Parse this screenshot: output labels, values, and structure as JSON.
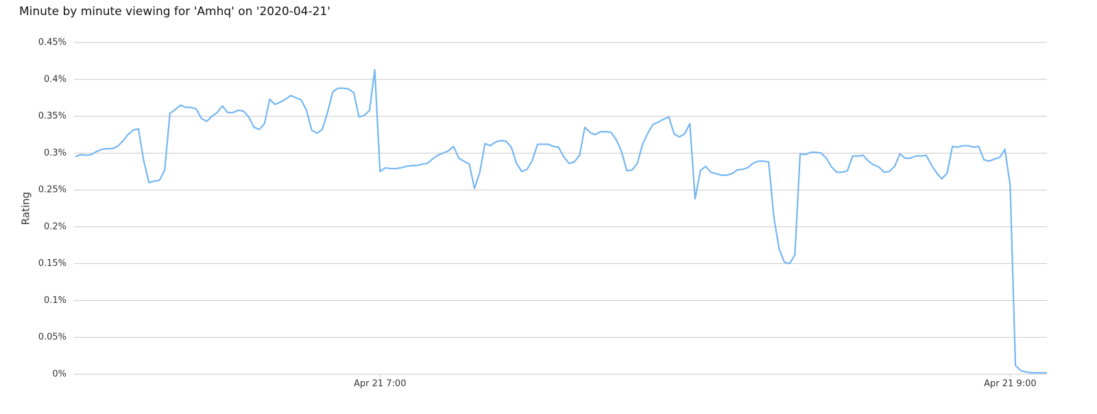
{
  "chart_data": {
    "type": "line",
    "title": "Minute by minute viewing for 'Amhq' on '2020-04-21'",
    "y_label": "Rating",
    "color": "#74b6f2",
    "grid": true,
    "x": [
      "6:02",
      "6:03",
      "6:04",
      "6:05",
      "6:06",
      "6:07",
      "6:08",
      "6:09",
      "6:10",
      "6:11",
      "6:12",
      "6:13",
      "6:14",
      "6:15",
      "6:16",
      "6:17",
      "6:18",
      "6:19",
      "6:20",
      "6:21",
      "6:22",
      "6:23",
      "6:24",
      "6:25",
      "6:26",
      "6:27",
      "6:28",
      "6:29",
      "6:30",
      "6:31",
      "6:32",
      "6:33",
      "6:34",
      "6:35",
      "6:36",
      "6:37",
      "6:38",
      "6:39",
      "6:40",
      "6:41",
      "6:42",
      "6:43",
      "6:44",
      "6:45",
      "6:46",
      "6:47",
      "6:48",
      "6:49",
      "6:50",
      "6:51",
      "6:52",
      "6:53",
      "6:54",
      "6:55",
      "6:56",
      "6:57",
      "6:58",
      "6:59",
      "7:00",
      "7:01",
      "7:02",
      "7:03",
      "7:04",
      "7:05",
      "7:06",
      "7:07",
      "7:08",
      "7:09",
      "7:10",
      "7:11",
      "7:12",
      "7:13",
      "7:14",
      "7:15",
      "7:16",
      "7:17",
      "7:18",
      "7:19",
      "7:20",
      "7:21",
      "7:22",
      "7:23",
      "7:24",
      "7:25",
      "7:26",
      "7:27",
      "7:28",
      "7:29",
      "7:30",
      "7:31",
      "7:32",
      "7:33",
      "7:34",
      "7:35",
      "7:36",
      "7:37",
      "7:38",
      "7:39",
      "7:40",
      "7:41",
      "7:42",
      "7:43",
      "7:44",
      "7:45",
      "7:46",
      "7:47",
      "7:48",
      "7:49",
      "7:50",
      "7:51",
      "7:52",
      "7:53",
      "7:54",
      "7:55",
      "7:56",
      "7:57",
      "7:58",
      "7:59",
      "8:00",
      "8:01",
      "8:02",
      "8:03",
      "8:04",
      "8:05",
      "8:06",
      "8:07",
      "8:08",
      "8:09",
      "8:10",
      "8:11",
      "8:12",
      "8:13",
      "8:14",
      "8:15",
      "8:16",
      "8:17",
      "8:18",
      "8:19",
      "8:20",
      "8:21",
      "8:22",
      "8:23",
      "8:24",
      "8:25",
      "8:26",
      "8:27",
      "8:28",
      "8:29",
      "8:30",
      "8:31",
      "8:32",
      "8:33",
      "8:34",
      "8:35",
      "8:36",
      "8:37",
      "8:38",
      "8:39",
      "8:40",
      "8:41",
      "8:42",
      "8:43",
      "8:44",
      "8:45",
      "8:46",
      "8:47",
      "8:48",
      "8:49",
      "8:50",
      "8:51",
      "8:52",
      "8:53",
      "8:54",
      "8:55",
      "8:56",
      "8:57",
      "8:58",
      "8:59",
      "9:00",
      "9:01",
      "9:02",
      "9:03",
      "9:04",
      "9:05",
      "9:06",
      "9:07"
    ],
    "values": [
      0.295,
      0.298,
      0.297,
      0.298,
      0.302,
      0.305,
      0.306,
      0.306,
      0.309,
      0.316,
      0.325,
      0.331,
      0.333,
      0.29,
      0.26,
      0.262,
      0.263,
      0.277,
      0.354,
      0.359,
      0.365,
      0.362,
      0.362,
      0.36,
      0.347,
      0.343,
      0.35,
      0.355,
      0.364,
      0.355,
      0.355,
      0.358,
      0.357,
      0.349,
      0.335,
      0.332,
      0.34,
      0.373,
      0.366,
      0.369,
      0.373,
      0.378,
      0.375,
      0.372,
      0.358,
      0.331,
      0.327,
      0.332,
      0.355,
      0.383,
      0.388,
      0.388,
      0.387,
      0.382,
      0.349,
      0.351,
      0.358,
      0.413,
      0.275,
      0.28,
      0.279,
      0.279,
      0.28,
      0.282,
      0.283,
      0.283,
      0.285,
      0.286,
      0.292,
      0.297,
      0.3,
      0.303,
      0.309,
      0.293,
      0.289,
      0.285,
      0.252,
      0.274,
      0.313,
      0.31,
      0.315,
      0.317,
      0.316,
      0.308,
      0.286,
      0.275,
      0.278,
      0.29,
      0.312,
      0.312,
      0.312,
      0.309,
      0.308,
      0.295,
      0.286,
      0.288,
      0.297,
      0.335,
      0.328,
      0.325,
      0.329,
      0.329,
      0.328,
      0.318,
      0.302,
      0.276,
      0.277,
      0.286,
      0.312,
      0.327,
      0.339,
      0.342,
      0.346,
      0.349,
      0.326,
      0.322,
      0.326,
      0.34,
      0.238,
      0.276,
      0.282,
      0.274,
      0.272,
      0.27,
      0.27,
      0.272,
      0.277,
      0.278,
      0.28,
      0.286,
      0.289,
      0.289,
      0.288,
      0.213,
      0.17,
      0.152,
      0.15,
      0.162,
      0.299,
      0.298,
      0.301,
      0.301,
      0.3,
      0.293,
      0.281,
      0.274,
      0.274,
      0.276,
      0.296,
      0.296,
      0.297,
      0.289,
      0.284,
      0.281,
      0.274,
      0.275,
      0.282,
      0.299,
      0.293,
      0.293,
      0.296,
      0.296,
      0.297,
      0.284,
      0.273,
      0.265,
      0.273,
      0.309,
      0.308,
      0.31,
      0.31,
      0.308,
      0.309,
      0.291,
      0.289,
      0.292,
      0.294,
      0.305,
      0.256,
      0.012,
      0.005,
      0.003,
      0.002,
      0.002,
      0.002,
      0.002
    ],
    "xlim": [
      "6:02",
      "9:07"
    ],
    "xticks": [
      {
        "value": "7:00",
        "label": "Apr 21 7:00"
      },
      {
        "value": "9:00",
        "label": "Apr 21 9:00"
      }
    ],
    "ylim": [
      0,
      0.45
    ],
    "yticks": [
      {
        "value": 0,
        "label": "0%"
      },
      {
        "value": 0.05,
        "label": "0.05%"
      },
      {
        "value": 0.1,
        "label": "0.1%"
      },
      {
        "value": 0.15,
        "label": "0.15%"
      },
      {
        "value": 0.2,
        "label": "0.2%"
      },
      {
        "value": 0.25,
        "label": "0.25%"
      },
      {
        "value": 0.3,
        "label": "0.3%"
      },
      {
        "value": 0.35,
        "label": "0.35%"
      },
      {
        "value": 0.4,
        "label": "0.4%"
      },
      {
        "value": 0.45,
        "label": "0.45%"
      }
    ]
  }
}
